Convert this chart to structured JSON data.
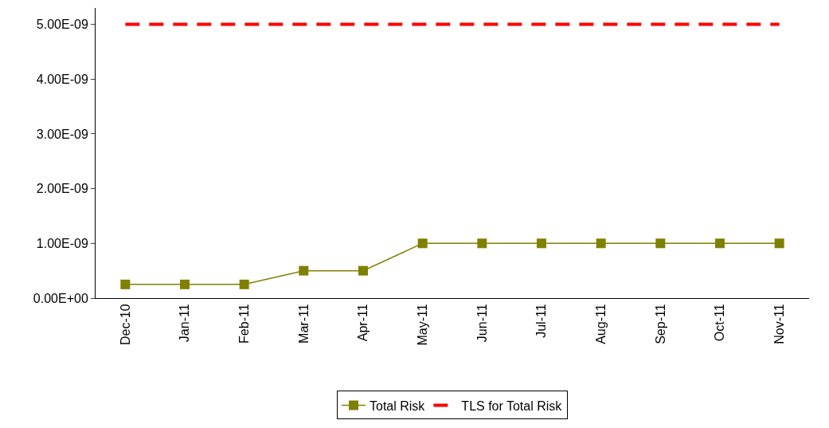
{
  "chart_data": {
    "type": "line",
    "categories": [
      "Dec-10",
      "Jan-11",
      "Feb-11",
      "Mar-11",
      "Apr-11",
      "May-11",
      "Jun-11",
      "Jul-11",
      "Aug-11",
      "Sep-11",
      "Oct-11",
      "Nov-11"
    ],
    "series": [
      {
        "name": "Total Risk",
        "color": "#808000",
        "marker": "square",
        "line_style": "solid",
        "values": [
          2.5e-10,
          2.5e-10,
          2.5e-10,
          5e-10,
          5e-10,
          1e-09,
          1e-09,
          1e-09,
          1e-09,
          1e-09,
          1e-09,
          1e-09
        ]
      },
      {
        "name": "TLS for Total Risk",
        "color": "#ff0000",
        "marker": "none",
        "line_style": "dashed",
        "values": [
          5e-09,
          5e-09,
          5e-09,
          5e-09,
          5e-09,
          5e-09,
          5e-09,
          5e-09,
          5e-09,
          5e-09,
          5e-09,
          5e-09
        ]
      }
    ],
    "ylim": [
      0,
      5.3e-09
    ],
    "yticks": [
      {
        "value": 0,
        "label": "0.00E+00"
      },
      {
        "value": 1e-09,
        "label": "1.00E-09"
      },
      {
        "value": 2e-09,
        "label": "2.00E-09"
      },
      {
        "value": 3e-09,
        "label": "3.00E-09"
      },
      {
        "value": 4e-09,
        "label": "4.00E-09"
      },
      {
        "value": 5e-09,
        "label": "5.00E-09"
      }
    ],
    "legend": "bottom"
  }
}
